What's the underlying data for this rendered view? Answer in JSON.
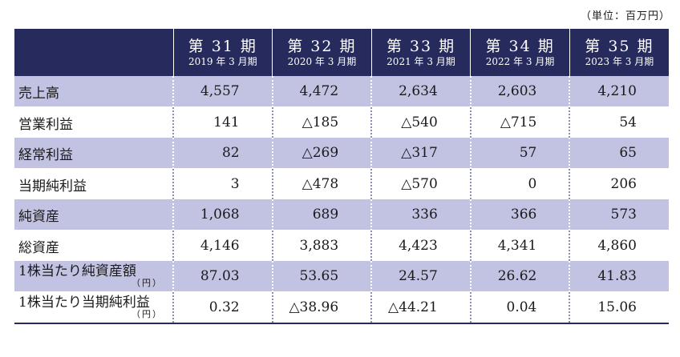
{
  "unit_note": "（単位：百万円）",
  "columns": [
    {
      "period": "第 31 期",
      "date": "2019 年 3 月期"
    },
    {
      "period": "第 32 期",
      "date": "2020 年 3 月期"
    },
    {
      "period": "第 33 期",
      "date": "2021 年 3 月期"
    },
    {
      "period": "第 34 期",
      "date": "2022 年 3 月期"
    },
    {
      "period": "第 35 期",
      "date": "2023 年 3 月期"
    }
  ],
  "rows": [
    {
      "label": "売上高",
      "values": [
        "4,557",
        "4,472",
        "2,634",
        "2,603",
        "4,210"
      ]
    },
    {
      "label": "営業利益",
      "values": [
        "141",
        "△185",
        "△540",
        "△715",
        "54"
      ]
    },
    {
      "label": "経常利益",
      "values": [
        "82",
        "△269",
        "△317",
        "57",
        "65"
      ]
    },
    {
      "label": "当期純利益",
      "values": [
        "3",
        "△478",
        "△570",
        "0",
        "206"
      ]
    },
    {
      "label": "純資産",
      "values": [
        "1,068",
        "689",
        "336",
        "366",
        "573"
      ]
    },
    {
      "label": "総資産",
      "values": [
        "4,146",
        "3,883",
        "4,423",
        "4,341",
        "4,860"
      ]
    },
    {
      "label": "1株当たり純資産額",
      "sub": "（円）",
      "values": [
        "87.03",
        "53.65",
        "24.57",
        "26.62",
        "41.83"
      ]
    },
    {
      "label": "1株当たり当期純利益",
      "sub": "（円）",
      "values": [
        "0.32",
        "△38.96",
        "△44.21",
        "0.04",
        "15.06"
      ]
    }
  ]
}
